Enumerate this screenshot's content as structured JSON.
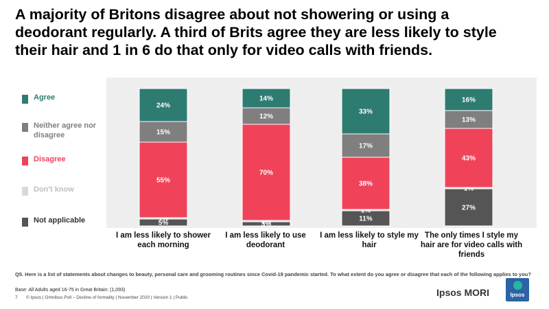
{
  "title": "A majority of Britons disagree about not showering or using a deodorant regularly. A third of Brits agree they are less likely to style their hair and 1 in 6 do that only for video calls with friends.",
  "colors": {
    "agree": "#2e7b72",
    "neither": "#7f7f7f",
    "disagree": "#f0435a",
    "dont_know": "#d9d9d9",
    "not_applicable": "#555555"
  },
  "chart_data": {
    "type": "bar",
    "stacked": true,
    "orientation": "vertical",
    "categories": [
      "I am less likely to shower each morning",
      "I am less likely to use deodorant",
      "I am less likely to style my hair",
      "The only times I style my hair are for video calls with friends"
    ],
    "series": [
      {
        "name": "Not applicable",
        "color": "#555555",
        "values": [
          5,
          3,
          11,
          27
        ],
        "labels": [
          "5%",
          "3%",
          "11%",
          "27%"
        ]
      },
      {
        "name": "Don't know",
        "color": "#d9d9d9",
        "values": [
          1,
          1,
          1,
          1
        ],
        "labels": [
          "1%",
          "1%",
          "1%",
          "1%"
        ]
      },
      {
        "name": "Disagree",
        "color": "#f0435a",
        "values": [
          55,
          70,
          38,
          43
        ],
        "labels": [
          "55%",
          "70%",
          "38%",
          "43%"
        ]
      },
      {
        "name": "Neither agree nor disagree",
        "color": "#7f7f7f",
        "values": [
          15,
          12,
          17,
          13
        ],
        "labels": [
          "15%",
          "12%",
          "17%",
          "13%"
        ]
      },
      {
        "name": "Agree",
        "color": "#2e7b72",
        "values": [
          24,
          14,
          33,
          16
        ],
        "labels": [
          "24%",
          "14%",
          "33%",
          "16%"
        ]
      }
    ],
    "ylim": [
      0,
      100
    ],
    "legend_position": "left"
  },
  "legend": [
    {
      "label": "Agree",
      "color": "#2e7b72",
      "text_color": "#2e7b72"
    },
    {
      "label": "Neither agree nor disagree",
      "color": "#7f7f7f",
      "text_color": "#7f7f7f"
    },
    {
      "label": "Disagree",
      "color": "#f0435a",
      "text_color": "#f0435a"
    },
    {
      "label": "Don't know",
      "color": "#d9d9d9",
      "text_color": "#bfbfbf"
    },
    {
      "label": "Not applicable",
      "color": "#555555",
      "text_color": "#333333"
    }
  ],
  "question": "Q5. Here is a list of statements about changes to beauty, personal care and grooming routines since Covid-19 pandemic started.  To what extent do you agree or disagree that each of the following applies to you?",
  "base": "Base: All Adults aged 16-75 in Great Britain: (1,093)",
  "footer": {
    "page": "7",
    "text": "© Ipsos | Omnibus Poll – Decline of formality | November  2020 | Version 1 | Public"
  },
  "brand": {
    "name": "Ipsos MORI",
    "logo_text": "Ipsos"
  }
}
